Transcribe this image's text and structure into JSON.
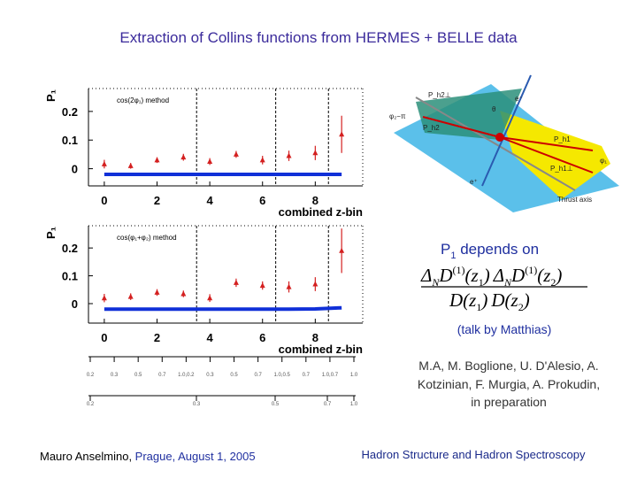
{
  "title": "Extraction of Collins functions from HERMES + BELLE data",
  "chart_data": [
    {
      "type": "scatter",
      "y_label": "P₁",
      "method_label": "cos(2φ₁) method",
      "x_label": "combined z-bin",
      "x": [
        0,
        1,
        2,
        3,
        4,
        5,
        6,
        7,
        8,
        9
      ],
      "values": [
        0.016,
        0.01,
        0.03,
        0.04,
        0.025,
        0.05,
        0.03,
        0.045,
        0.055,
        0.12
      ],
      "errors": [
        0.015,
        0.01,
        0.01,
        0.012,
        0.012,
        0.012,
        0.015,
        0.018,
        0.025,
        0.065
      ],
      "color": "#d42020",
      "model": {
        "color": "#1030d8",
        "values": [
          -0.02,
          -0.02,
          -0.02,
          -0.02,
          -0.02,
          -0.02,
          -0.02,
          -0.02,
          -0.02,
          -0.02
        ]
      },
      "dividers": [
        3.5,
        6.5,
        8.5
      ],
      "xlim": [
        -0.6,
        9.8
      ],
      "ylim": [
        -0.06,
        0.28
      ],
      "xticks": [
        0,
        2,
        4,
        6,
        8
      ],
      "yticks": [
        0,
        0.1,
        0.2
      ]
    },
    {
      "type": "scatter",
      "y_label": "P₁",
      "method_label": "cos(φ₁+φ₂) method",
      "x_label": "combined z-bin",
      "x": [
        0,
        1,
        2,
        3,
        4,
        5,
        6,
        7,
        8,
        9
      ],
      "values": [
        0.02,
        0.025,
        0.04,
        0.035,
        0.02,
        0.075,
        0.065,
        0.06,
        0.07,
        0.19
      ],
      "errors": [
        0.015,
        0.012,
        0.012,
        0.012,
        0.014,
        0.015,
        0.015,
        0.02,
        0.025,
        0.08
      ],
      "color": "#d42020",
      "model": {
        "color": "#1030d8",
        "values": [
          -0.02,
          -0.02,
          -0.02,
          -0.02,
          -0.02,
          -0.02,
          -0.02,
          -0.02,
          -0.019,
          -0.015
        ]
      },
      "dividers": [
        3.5,
        6.5,
        8.5
      ],
      "xlim": [
        -0.6,
        9.8
      ],
      "ylim": [
        -0.07,
        0.28
      ],
      "xticks": [
        0,
        2,
        4,
        6,
        8
      ],
      "yticks": [
        0,
        0.1,
        0.2
      ]
    }
  ],
  "z_scale": {
    "z1_labels": [
      "0.2",
      "0.3",
      "0.5",
      "0.7",
      "1.0,0.2",
      "0.3",
      "0.5",
      "0.7",
      "1.0,0.5",
      "0.7",
      "1.0,0.7",
      "1.0"
    ],
    "z2_labels": [
      "0.2",
      "0.3",
      "0.5",
      "0.7",
      "1.0"
    ]
  },
  "diagram": {
    "labels": [
      "P_h2⊥",
      "e⁻",
      "φ₂−π",
      "θ",
      "P_h2",
      "P_h1",
      "P_h1⊥",
      "φ₁",
      "e⁺",
      "Thrust axis"
    ]
  },
  "depends": [
    "P",
    "1",
    " depends on"
  ],
  "formula": {
    "numerator": [
      "Δ",
      "N",
      "D",
      "(1)",
      "(z",
      "1",
      ")",
      "Δ",
      "N",
      "D",
      "(1)",
      "(z",
      "2",
      ")"
    ],
    "denominator": [
      "D",
      "(z",
      "1",
      ")",
      "D",
      "(z",
      "2",
      ")"
    ]
  },
  "talk": "(talk by Matthias)",
  "authors": [
    "M.A, M. Boglione, U. D'Alesio, A.",
    "Kotzinian, F. Murgia, A. Prokudin,",
    "in preparation"
  ],
  "footer": {
    "speaker": "Mauro Anselmino, ",
    "place_date": "Prague, August 1, 2005",
    "conference": "Hadron Structure and Hadron Spectroscopy"
  }
}
